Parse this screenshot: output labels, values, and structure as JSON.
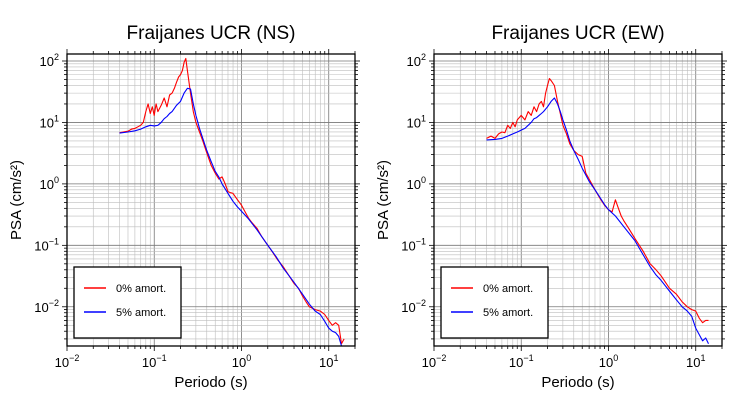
{
  "chart_data": [
    {
      "type": "line",
      "title": "Fraijanes UCR (NS)",
      "xlabel": "Periodo (s)",
      "ylabel": "PSA (cm/s²)",
      "xscale": "log",
      "yscale": "log",
      "xlim": [
        0.01,
        20
      ],
      "ylim": [
        0.0023,
        130
      ],
      "grid": true,
      "legend_position": "bottom-left",
      "x_ticks": [
        {
          "base": "10",
          "exp": "−2",
          "value": 0.01
        },
        {
          "base": "10",
          "exp": "−1",
          "value": 0.1
        },
        {
          "base": "10",
          "exp": "0",
          "value": 1
        },
        {
          "base": "10",
          "exp": "1",
          "value": 10
        }
      ],
      "y_ticks": [
        {
          "base": "10",
          "exp": "−2",
          "value": 0.01
        },
        {
          "base": "10",
          "exp": "−1",
          "value": 0.1
        },
        {
          "base": "10",
          "exp": "0",
          "value": 1
        },
        {
          "base": "10",
          "exp": "1",
          "value": 10
        },
        {
          "base": "10",
          "exp": "2",
          "value": 100
        }
      ],
      "series": [
        {
          "name": "0% amort.",
          "color": "#ff0000",
          "x": [
            0.04,
            0.05,
            0.055,
            0.06,
            0.065,
            0.07,
            0.075,
            0.08,
            0.085,
            0.09,
            0.095,
            0.1,
            0.105,
            0.11,
            0.12,
            0.13,
            0.14,
            0.15,
            0.16,
            0.17,
            0.18,
            0.19,
            0.2,
            0.21,
            0.22,
            0.23,
            0.24,
            0.26,
            0.28,
            0.3,
            0.33,
            0.36,
            0.4,
            0.45,
            0.5,
            0.55,
            0.6,
            0.65,
            0.7,
            0.75,
            0.8,
            0.9,
            1.0,
            1.1,
            1.2,
            1.3,
            1.5,
            1.7,
            2.0,
            2.3,
            2.6,
            3.0,
            3.5,
            4.0,
            4.5,
            5.0,
            5.5,
            6.0,
            7.0,
            8.0,
            9.0,
            10.0,
            11.0,
            12.0,
            13.0,
            14.0,
            15.0
          ],
          "y": [
            6.8,
            7.2,
            7.8,
            8.0,
            8.5,
            9.0,
            10.0,
            15.0,
            20.0,
            14.0,
            18.0,
            13.0,
            20.0,
            15.0,
            19.0,
            25.0,
            18.0,
            28.0,
            30.0,
            36.0,
            45.0,
            55.0,
            60.0,
            70.0,
            95.0,
            110.0,
            70.0,
            30.0,
            15.0,
            10.0,
            7.0,
            5.0,
            3.2,
            2.0,
            1.5,
            1.2,
            1.3,
            1.0,
            0.75,
            0.72,
            0.7,
            0.55,
            0.45,
            0.35,
            0.28,
            0.24,
            0.19,
            0.14,
            0.1,
            0.075,
            0.058,
            0.045,
            0.032,
            0.024,
            0.02,
            0.015,
            0.012,
            0.01,
            0.009,
            0.0085,
            0.0075,
            0.006,
            0.005,
            0.0055,
            0.005,
            0.0025,
            0.003
          ]
        },
        {
          "name": "5% amort.",
          "color": "#0000ff",
          "x": [
            0.04,
            0.05,
            0.06,
            0.07,
            0.08,
            0.09,
            0.1,
            0.11,
            0.12,
            0.13,
            0.14,
            0.15,
            0.16,
            0.17,
            0.18,
            0.2,
            0.22,
            0.24,
            0.26,
            0.28,
            0.3,
            0.33,
            0.36,
            0.4,
            0.45,
            0.5,
            0.55,
            0.6,
            0.7,
            0.8,
            0.9,
            1.0,
            1.2,
            1.5,
            2.0,
            2.5,
            3.0,
            3.5,
            4.0,
            5.0,
            6.0,
            7.0,
            8.0,
            9.0,
            10.0,
            11.0,
            12.0,
            13.0,
            14.0
          ],
          "y": [
            6.7,
            7.0,
            7.3,
            7.8,
            8.5,
            9.0,
            8.8,
            9.0,
            10.0,
            11.5,
            12.5,
            14.0,
            15.0,
            17.0,
            19.0,
            22.0,
            30.0,
            36.0,
            35.0,
            20.0,
            13.0,
            8.0,
            5.5,
            3.5,
            2.3,
            1.6,
            1.3,
            1.0,
            0.7,
            0.52,
            0.42,
            0.36,
            0.27,
            0.18,
            0.1,
            0.065,
            0.043,
            0.032,
            0.025,
            0.016,
            0.011,
            0.0085,
            0.0075,
            0.0058,
            0.0045,
            0.004,
            0.0038,
            0.0033,
            0.0023
          ]
        }
      ]
    },
    {
      "type": "line",
      "title": "Fraijanes UCR (EW)",
      "xlabel": "Periodo (s)",
      "ylabel": "PSA (cm/s²)",
      "xscale": "log",
      "yscale": "log",
      "xlim": [
        0.01,
        20
      ],
      "ylim": [
        0.0023,
        130
      ],
      "grid": true,
      "legend_position": "bottom-left",
      "x_ticks": [
        {
          "base": "10",
          "exp": "−2",
          "value": 0.01
        },
        {
          "base": "10",
          "exp": "−1",
          "value": 0.1
        },
        {
          "base": "10",
          "exp": "0",
          "value": 1
        },
        {
          "base": "10",
          "exp": "1",
          "value": 10
        }
      ],
      "y_ticks": [
        {
          "base": "10",
          "exp": "−2",
          "value": 0.01
        },
        {
          "base": "10",
          "exp": "−1",
          "value": 0.1
        },
        {
          "base": "10",
          "exp": "0",
          "value": 1
        },
        {
          "base": "10",
          "exp": "1",
          "value": 10
        },
        {
          "base": "10",
          "exp": "2",
          "value": 100
        }
      ],
      "series": [
        {
          "name": "0% amort.",
          "color": "#ff0000",
          "x": [
            0.04,
            0.045,
            0.05,
            0.055,
            0.06,
            0.065,
            0.07,
            0.075,
            0.08,
            0.085,
            0.09,
            0.1,
            0.11,
            0.12,
            0.13,
            0.14,
            0.15,
            0.16,
            0.17,
            0.18,
            0.19,
            0.2,
            0.21,
            0.22,
            0.24,
            0.26,
            0.28,
            0.3,
            0.33,
            0.36,
            0.4,
            0.45,
            0.5,
            0.55,
            0.6,
            0.7,
            0.8,
            0.9,
            1.0,
            1.1,
            1.2,
            1.3,
            1.4,
            1.5,
            1.7,
            2.0,
            2.5,
            3.0,
            3.5,
            4.0,
            5.0,
            6.0,
            7.0,
            8.0,
            9.0,
            10.0,
            11.0,
            12.0,
            13.0,
            14.0
          ],
          "y": [
            5.5,
            6.0,
            5.5,
            6.5,
            7.0,
            6.8,
            9.0,
            8.0,
            10.0,
            8.5,
            11.0,
            13.0,
            11.0,
            15.0,
            13.0,
            18.0,
            15.0,
            20.0,
            22.0,
            18.0,
            30.0,
            40.0,
            52.0,
            48.0,
            40.0,
            22.0,
            14.0,
            9.0,
            6.5,
            4.5,
            3.5,
            3.0,
            2.8,
            1.5,
            1.2,
            0.8,
            0.58,
            0.45,
            0.38,
            0.35,
            0.55,
            0.4,
            0.3,
            0.25,
            0.19,
            0.13,
            0.08,
            0.05,
            0.04,
            0.032,
            0.02,
            0.016,
            0.012,
            0.01,
            0.009,
            0.0085,
            0.0065,
            0.0055,
            0.006,
            0.006
          ]
        },
        {
          "name": "5% amort.",
          "color": "#0000ff",
          "x": [
            0.04,
            0.05,
            0.06,
            0.07,
            0.08,
            0.09,
            0.1,
            0.11,
            0.12,
            0.13,
            0.14,
            0.15,
            0.16,
            0.17,
            0.18,
            0.2,
            0.22,
            0.24,
            0.26,
            0.28,
            0.3,
            0.33,
            0.36,
            0.4,
            0.45,
            0.5,
            0.6,
            0.7,
            0.8,
            0.9,
            1.0,
            1.2,
            1.5,
            2.0,
            2.5,
            3.0,
            3.5,
            4.0,
            5.0,
            6.0,
            7.0,
            8.0,
            9.0,
            10.0,
            11.0,
            12.0,
            13.0,
            14.0
          ],
          "y": [
            5.2,
            5.3,
            5.5,
            6.0,
            6.5,
            7.0,
            7.5,
            8.0,
            9.0,
            10.0,
            11.5,
            12.0,
            13.0,
            14.0,
            15.0,
            18.0,
            22.0,
            25.0,
            20.0,
            15.0,
            11.0,
            7.5,
            5.0,
            3.5,
            2.5,
            1.8,
            1.1,
            0.8,
            0.6,
            0.46,
            0.38,
            0.3,
            0.2,
            0.12,
            0.07,
            0.045,
            0.033,
            0.027,
            0.018,
            0.013,
            0.01,
            0.0085,
            0.007,
            0.0045,
            0.0035,
            0.0028,
            0.0031,
            0.0025
          ]
        }
      ]
    }
  ]
}
